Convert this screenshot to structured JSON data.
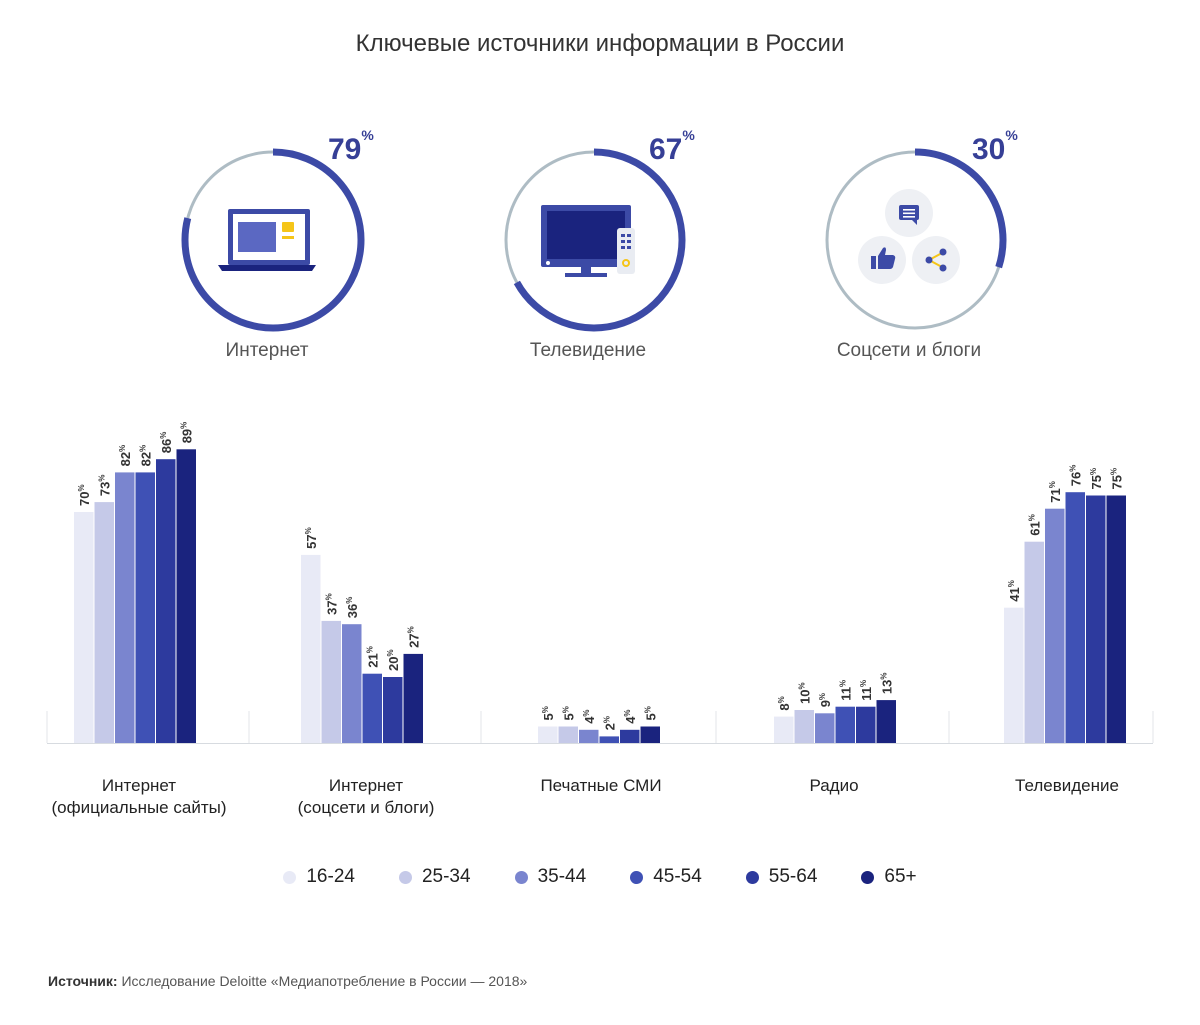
{
  "title": "Ключевые источники информации в России",
  "percent_suffix": "%",
  "colors": {
    "arc_main": "#3c4aa6",
    "arc_rest": "#aebcc4",
    "age_groups": [
      "#e8eaf6",
      "#c5c9e8",
      "#7a85cf",
      "#3f51b5",
      "#2d3a9e",
      "#1a237e"
    ]
  },
  "donuts": [
    {
      "value": 79,
      "label": "Интернет",
      "icon": "laptop-icon"
    },
    {
      "value": 67,
      "label": "Телевидение",
      "icon": "tv-icon"
    },
    {
      "value": 30,
      "label": "Соцсети и блоги",
      "icon": "social-icons"
    }
  ],
  "chart_data": {
    "type": "bar",
    "categories": [
      "Интернет\n(официальные сайты)",
      "Интернет\n(соцсети и блоги)",
      "Печатные СМИ",
      "Радио",
      "Телевидение"
    ],
    "series": [
      {
        "name": "16-24",
        "values": [
          70,
          57,
          5,
          8,
          41
        ]
      },
      {
        "name": "25-34",
        "values": [
          73,
          37,
          5,
          10,
          61
        ]
      },
      {
        "name": "35-44",
        "values": [
          82,
          36,
          4,
          9,
          71
        ]
      },
      {
        "name": "45-54",
        "values": [
          82,
          21,
          2,
          11,
          76
        ]
      },
      {
        "name": "55-64",
        "values": [
          86,
          20,
          4,
          11,
          75
        ]
      },
      {
        "name": "65+",
        "values": [
          89,
          27,
          5,
          13,
          75
        ]
      }
    ],
    "ylim": [
      0,
      100
    ],
    "value_suffix": "%",
    "grid": false,
    "legend_position": "bottom"
  },
  "source": {
    "label": "Источник:",
    "text": "Исследование Deloitte «Медиапотребление в России — 2018»"
  }
}
